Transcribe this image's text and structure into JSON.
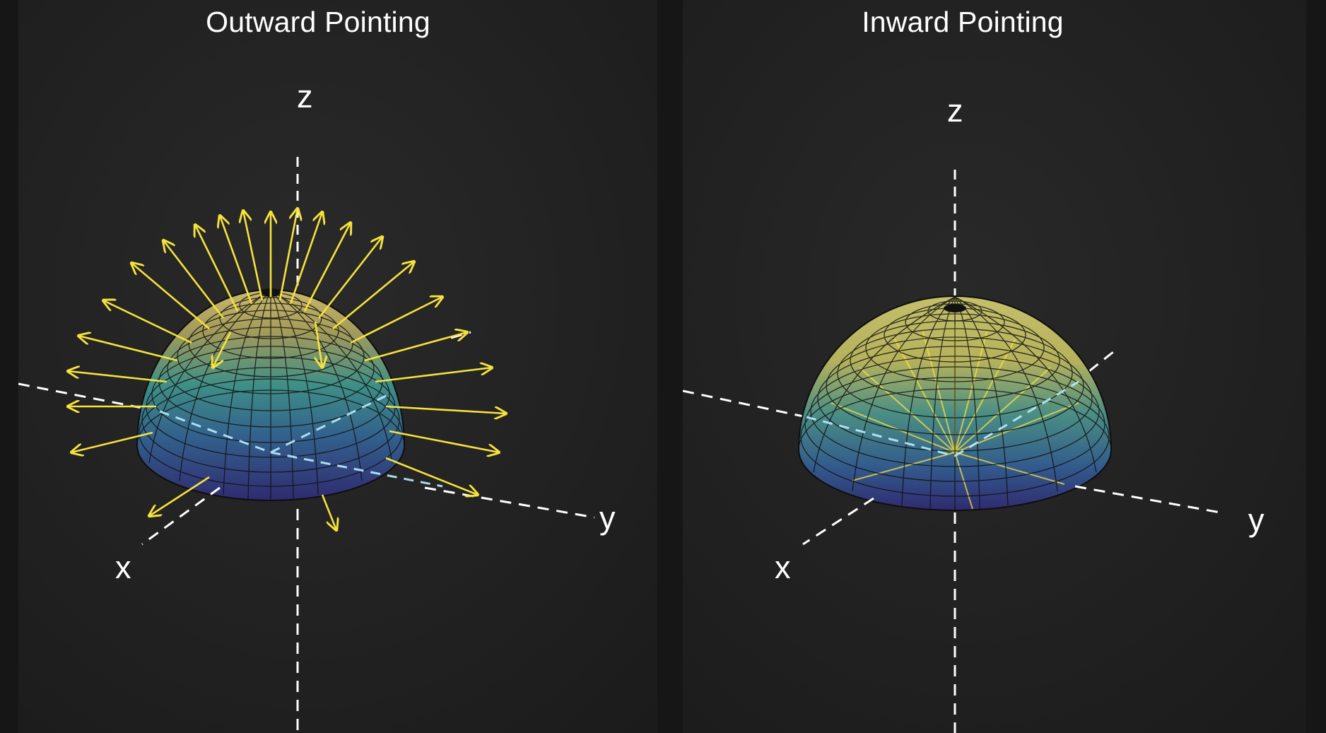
{
  "panels": [
    {
      "title": "Outward Pointing",
      "orientation": "outward",
      "axis_labels": {
        "z": "z",
        "x": "x",
        "y": "y"
      }
    },
    {
      "title": "Inward Pointing",
      "orientation": "inward",
      "axis_labels": {
        "z": "z",
        "x": "x",
        "y": "y"
      }
    }
  ],
  "colors": {
    "background": "#1e1e1e",
    "axis_dash": "#ffffff",
    "arrow": "#f5e23c",
    "surface_top": "#e8c94c",
    "surface_mid": "#3e8a86",
    "surface_bottom": "#2e2a74",
    "mesh": "#101010"
  },
  "icons": {
    "surface": "hemisphere-surface",
    "vectors": "normal-vector-arrows"
  }
}
